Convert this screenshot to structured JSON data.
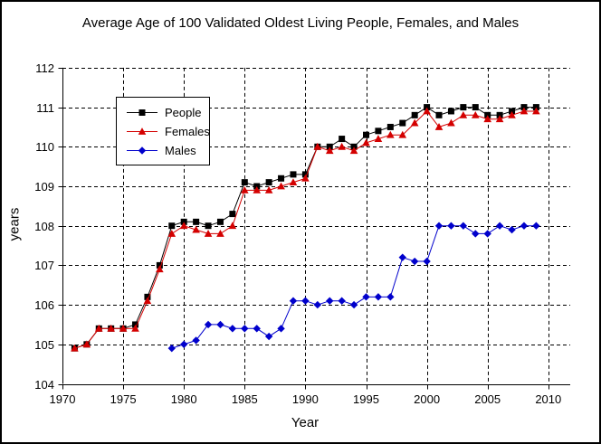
{
  "window": {
    "background_color": "#ffffff",
    "border_color": "#000000"
  },
  "chart_data": {
    "type": "line",
    "title": "Average Age of 100 Validated Oldest Living People, Females, and Males",
    "xlabel": "Year",
    "ylabel": "years",
    "grid": "dashed",
    "legend_position": "upper-left-inside",
    "x_axis": {
      "min": 1970,
      "max": 2010,
      "tick_values": [
        1970,
        1975,
        1980,
        1985,
        1990,
        1995,
        2000,
        2005,
        2010
      ],
      "tick_labels": [
        "1970",
        "1975",
        "1980",
        "1985",
        "1990",
        "1995",
        "2000",
        "2005",
        "2010"
      ]
    },
    "y_axis": {
      "min": 104,
      "max": 112,
      "tick_values": [
        104,
        105,
        106,
        107,
        108,
        109,
        110,
        111,
        112
      ],
      "tick_labels": [
        "104",
        "105",
        "106",
        "107",
        "108",
        "109",
        "110",
        "111",
        "112"
      ]
    },
    "years": [
      1971,
      1972,
      1973,
      1974,
      1975,
      1976,
      1977,
      1978,
      1979,
      1980,
      1981,
      1982,
      1983,
      1984,
      1985,
      1986,
      1987,
      1988,
      1989,
      1990,
      1991,
      1992,
      1993,
      1994,
      1995,
      1996,
      1997,
      1998,
      1999,
      2000,
      2001,
      2002,
      2003,
      2004,
      2005,
      2006,
      2007,
      2008,
      2009
    ],
    "series": [
      {
        "name": "People",
        "color": "#000000",
        "marker": "square",
        "values": [
          104.9,
          105.0,
          105.4,
          105.4,
          105.4,
          105.5,
          106.2,
          107.0,
          108.0,
          108.1,
          108.1,
          108.0,
          108.1,
          108.3,
          109.1,
          109.0,
          109.1,
          109.2,
          109.3,
          109.3,
          110.0,
          110.0,
          110.2,
          110.0,
          110.3,
          110.4,
          110.5,
          110.6,
          110.8,
          111.0,
          110.8,
          110.9,
          111.0,
          111.0,
          110.8,
          110.8,
          110.9,
          111.0,
          111.0
        ]
      },
      {
        "name": "Females",
        "color": "#d40000",
        "marker": "triangle",
        "values": [
          104.9,
          105.0,
          105.4,
          105.4,
          105.4,
          105.4,
          106.1,
          106.9,
          107.8,
          108.0,
          107.9,
          107.8,
          107.8,
          108.0,
          108.9,
          108.9,
          108.9,
          109.0,
          109.1,
          109.2,
          110.0,
          109.9,
          110.0,
          109.9,
          110.1,
          110.2,
          110.3,
          110.3,
          110.6,
          110.9,
          110.5,
          110.6,
          110.8,
          110.8,
          110.7,
          110.7,
          110.8,
          110.9,
          110.9
        ]
      },
      {
        "name": "Males",
        "color": "#0000cc",
        "marker": "diamond",
        "values": [
          null,
          null,
          null,
          null,
          null,
          null,
          null,
          null,
          104.9,
          105.0,
          105.1,
          105.5,
          105.5,
          105.4,
          105.4,
          105.4,
          105.2,
          105.4,
          106.1,
          106.1,
          106.0,
          106.1,
          106.1,
          106.0,
          106.2,
          106.2,
          106.2,
          107.2,
          107.1,
          107.1,
          108.0,
          108.0,
          108.0,
          107.8,
          107.8,
          108.0,
          107.9,
          108.0,
          108.0
        ]
      }
    ]
  }
}
